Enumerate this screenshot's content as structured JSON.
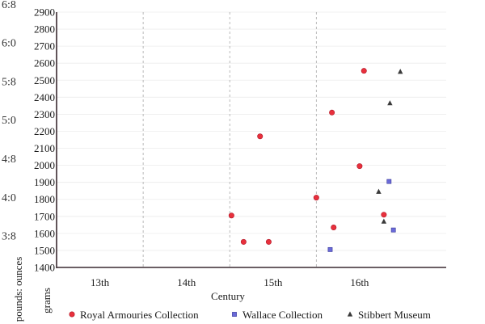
{
  "chart_data": {
    "type": "scatter",
    "xlabel": "Century",
    "ylabel": "grams",
    "ylabel_alt": "pounds: ounces",
    "categories": [
      "13th",
      "14th",
      "15th",
      "16th"
    ],
    "xlim": [
      12.5,
      17
    ],
    "ylim": [
      1400,
      2900
    ],
    "y_ticks": [
      1400,
      1500,
      1600,
      1700,
      1800,
      1900,
      2000,
      2100,
      2200,
      2300,
      2400,
      2500,
      2600,
      2700,
      2800,
      2900
    ],
    "y_ticks_alt": [
      {
        "label": "3:8",
        "grams": 1588
      },
      {
        "label": "4:0",
        "grams": 1814
      },
      {
        "label": "4:8",
        "grams": 2041
      },
      {
        "label": "5:0",
        "grams": 2268
      },
      {
        "label": "5:8",
        "grams": 2495
      },
      {
        "label": "6:0",
        "grams": 2722
      },
      {
        "label": "6:8",
        "grams": 2948
      }
    ],
    "grid": true,
    "legend_position": "bottom",
    "series": [
      {
        "name": "Royal Armouries Collection",
        "marker": "circle",
        "color": "#e8303c",
        "points": [
          {
            "x": 14.52,
            "y": 1705
          },
          {
            "x": 14.66,
            "y": 1550
          },
          {
            "x": 14.85,
            "y": 2170
          },
          {
            "x": 14.95,
            "y": 1550
          },
          {
            "x": 15.5,
            "y": 1810
          },
          {
            "x": 15.68,
            "y": 2310
          },
          {
            "x": 15.7,
            "y": 1635
          },
          {
            "x": 16.0,
            "y": 1995
          },
          {
            "x": 16.05,
            "y": 2555
          },
          {
            "x": 16.28,
            "y": 1710
          }
        ]
      },
      {
        "name": "Wallace Collection",
        "marker": "square",
        "color": "#6a6ad8",
        "points": [
          {
            "x": 15.66,
            "y": 1505
          },
          {
            "x": 16.34,
            "y": 1905
          },
          {
            "x": 16.39,
            "y": 1620
          }
        ]
      },
      {
        "name": "Stibbert Museum",
        "marker": "triangle",
        "color": "#3a3a3a",
        "points": [
          {
            "x": 16.22,
            "y": 1845
          },
          {
            "x": 16.28,
            "y": 1670
          },
          {
            "x": 16.35,
            "y": 2365
          },
          {
            "x": 16.47,
            "y": 2550
          }
        ]
      }
    ]
  }
}
